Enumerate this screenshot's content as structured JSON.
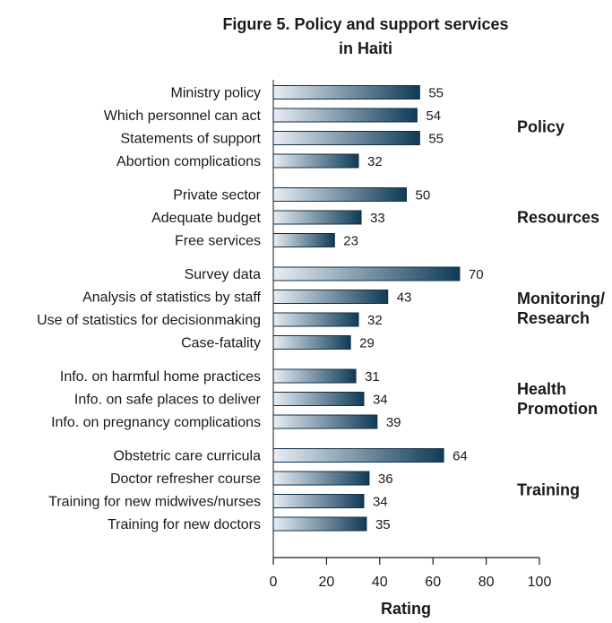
{
  "chart_data": {
    "type": "bar",
    "orientation": "horizontal",
    "title": [
      "Figure 5. Policy and support services",
      "in Haiti"
    ],
    "xlabel": "Rating",
    "xlim": [
      0,
      100
    ],
    "xticks": [
      0,
      20,
      40,
      60,
      80,
      100
    ],
    "grid": false,
    "legend": "none",
    "bar_gradient": [
      "#e8eef5",
      "#0f3b57"
    ],
    "groups": [
      {
        "name": [
          "Policy"
        ],
        "items": [
          {
            "label": "Ministry policy",
            "value": 55
          },
          {
            "label": "Which personnel can act",
            "value": 54
          },
          {
            "label": "Statements of support",
            "value": 55
          },
          {
            "label": "Abortion complications",
            "value": 32
          }
        ]
      },
      {
        "name": [
          "Resources"
        ],
        "items": [
          {
            "label": "Private sector",
            "value": 50
          },
          {
            "label": "Adequate budget",
            "value": 33
          },
          {
            "label": "Free services",
            "value": 23
          }
        ]
      },
      {
        "name": [
          "Monitoring/",
          "Research"
        ],
        "items": [
          {
            "label": "Survey data",
            "value": 70
          },
          {
            "label": "Analysis of statistics by staff",
            "value": 43
          },
          {
            "label": "Use of statistics for decisionmaking",
            "value": 32
          },
          {
            "label": "Case-fatality",
            "value": 29
          }
        ]
      },
      {
        "name": [
          "Health",
          "Promotion"
        ],
        "items": [
          {
            "label": "Info. on harmful home practices",
            "value": 31
          },
          {
            "label": "Info. on safe places to deliver",
            "value": 34
          },
          {
            "label": "Info. on pregnancy complications",
            "value": 39
          }
        ]
      },
      {
        "name": [
          "Training"
        ],
        "items": [
          {
            "label": "Obstetric care curricula",
            "value": 64
          },
          {
            "label": "Doctor refresher course",
            "value": 36
          },
          {
            "label": "Training for new midwives/nurses",
            "value": 34
          },
          {
            "label": "Training for new doctors",
            "value": 35
          }
        ]
      }
    ]
  }
}
